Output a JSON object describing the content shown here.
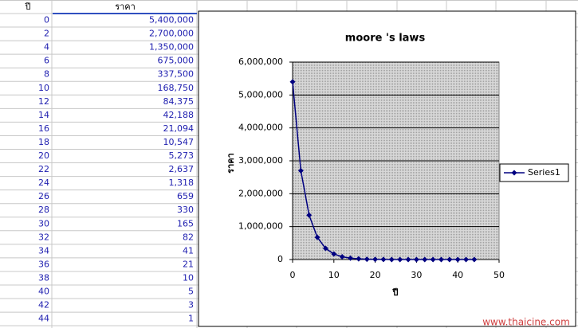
{
  "table": {
    "headers": [
      "ปี",
      "ราคา"
    ]
  },
  "chart_data": {
    "type": "line",
    "title": "moore 's laws",
    "x_label": "ปี",
    "y_label": "ราคา",
    "x": [
      0,
      2,
      4,
      6,
      8,
      10,
      12,
      14,
      16,
      18,
      20,
      22,
      24,
      26,
      28,
      30,
      32,
      34,
      36,
      38,
      40,
      42,
      44
    ],
    "series": [
      {
        "name": "Series1",
        "color": "#000080",
        "values": [
          5400000,
          2700000,
          1350000,
          675000,
          337500,
          168750,
          84375,
          42188,
          21094,
          10547,
          5273,
          2637,
          1318,
          659,
          330,
          165,
          82,
          41,
          21,
          10,
          5,
          3,
          1
        ],
        "value_labels": [
          "5,400,000",
          "2,700,000",
          "1,350,000",
          "675,000",
          "337,500",
          "168,750",
          "84,375",
          "42,188",
          "21,094",
          "10,547",
          "5,273",
          "2,637",
          "1,318",
          "659",
          "330",
          "165",
          "82",
          "41",
          "21",
          "10",
          "5",
          "3",
          "1"
        ]
      }
    ],
    "xlim": [
      0,
      50
    ],
    "xticks": [
      0,
      10,
      20,
      30,
      40,
      50
    ],
    "ylim": [
      0,
      6000000
    ],
    "yticks": [
      0,
      {
        "value": 1000000,
        "label": "1,000,000"
      },
      {
        "value": 2000000,
        "label": "2,000,000"
      },
      {
        "value": 3000000,
        "label": "3,000,000"
      },
      {
        "value": 4000000,
        "label": "4,000,000"
      },
      {
        "value": 5000000,
        "label": "5,000,000"
      },
      {
        "value": 6000000,
        "label": "6,000,000"
      }
    ],
    "grid": true,
    "legend": "right"
  },
  "watermark": "www.thaicine.com"
}
